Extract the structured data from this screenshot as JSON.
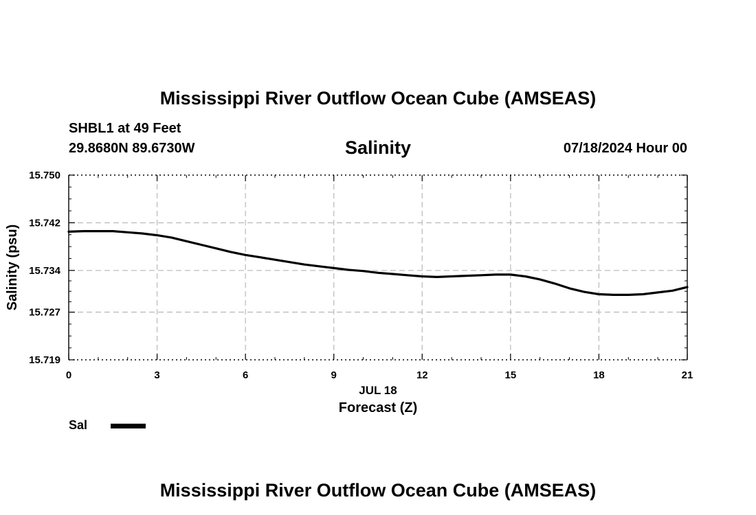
{
  "header": {
    "title": "Mississippi River Outflow Ocean Cube (AMSEAS)",
    "station": "SHBL1 at 49 Feet",
    "coords": "29.8680N  89.6730W",
    "parameter": "Salinity",
    "datetime": "07/18/2024 Hour 00"
  },
  "footer": {
    "title": "Mississippi River Outflow Ocean Cube (AMSEAS)"
  },
  "legend": {
    "label": "Sal"
  },
  "chart_data": {
    "type": "line",
    "title": "Salinity",
    "xlabel": "Forecast (Z)",
    "xlabel_date": "JUL 18",
    "ylabel": "Salinity (psu)",
    "xlim": [
      0,
      21
    ],
    "ylim": [
      15.719,
      15.75
    ],
    "x_ticks": [
      0,
      3,
      6,
      9,
      12,
      15,
      18,
      21
    ],
    "y_ticks": [
      "15.719",
      "15.727",
      "15.734",
      "15.742",
      "15.750"
    ],
    "y_tick_values": [
      15.719,
      15.727,
      15.734,
      15.742,
      15.75
    ],
    "grid": true,
    "legend_position": "bottom-left",
    "series": [
      {
        "name": "Sal",
        "color": "#000000",
        "x": [
          0,
          0.5,
          1,
          1.5,
          2,
          2.5,
          3,
          3.5,
          4,
          4.5,
          5,
          5.5,
          6,
          6.5,
          7,
          7.5,
          8,
          8.5,
          9,
          9.5,
          10,
          10.5,
          11,
          11.5,
          12,
          12.5,
          13,
          13.5,
          14,
          14.5,
          15,
          15.5,
          16,
          16.5,
          17,
          17.5,
          18,
          18.5,
          19,
          19.5,
          20,
          20.5,
          21
        ],
        "values": [
          15.7405,
          15.7406,
          15.7406,
          15.7406,
          15.7404,
          15.7402,
          15.7399,
          15.7395,
          15.7389,
          15.7383,
          15.7377,
          15.7371,
          15.7366,
          15.7362,
          15.7358,
          15.7354,
          15.735,
          15.7347,
          15.7344,
          15.7341,
          15.7339,
          15.7336,
          15.7334,
          15.7332,
          15.733,
          15.7329,
          15.733,
          15.7331,
          15.7332,
          15.7333,
          15.7333,
          15.733,
          15.7325,
          15.7318,
          15.731,
          15.7304,
          15.73,
          15.7299,
          15.7299,
          15.73,
          15.7303,
          15.7306,
          15.7312
        ]
      }
    ]
  }
}
